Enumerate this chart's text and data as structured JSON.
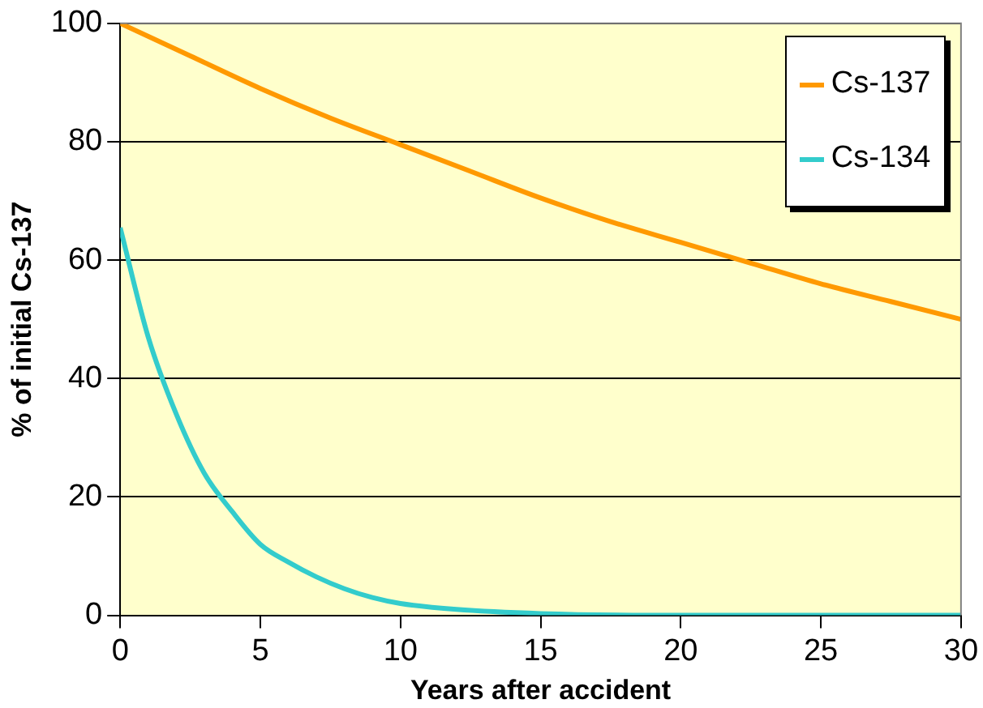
{
  "chart_data": {
    "type": "line",
    "xlabel": "Years after accident",
    "ylabel": "% of initial Cs-137",
    "xlim": [
      0,
      30
    ],
    "xticks": [
      0,
      5,
      10,
      15,
      20,
      25,
      30
    ],
    "ylim": [
      0,
      100
    ],
    "yticks": [
      0,
      20,
      40,
      60,
      80,
      100
    ],
    "grid": "y",
    "legend": "top right",
    "marker": "none",
    "line_style": "solid",
    "series": [
      {
        "name": "Cs-137",
        "color": "#ff9900",
        "x": [
          0,
          2.5,
          5,
          7.5,
          10,
          12.5,
          15,
          17.5,
          20,
          22.5,
          25,
          27.5,
          30
        ],
        "values": [
          100,
          94.5,
          89,
          84,
          79.5,
          75,
          70.5,
          66.5,
          63,
          59.5,
          56,
          53,
          50
        ]
      },
      {
        "name": "Cs-134",
        "color": "#33cccc",
        "x": [
          0,
          1,
          2,
          3,
          4,
          5,
          6,
          7,
          8,
          9,
          10,
          12,
          15,
          20,
          25,
          30
        ],
        "values": [
          65.5,
          47,
          34,
          24,
          17.5,
          12,
          9,
          6.5,
          4.5,
          3,
          2,
          1,
          0.3,
          0,
          0,
          0
        ]
      }
    ]
  }
}
